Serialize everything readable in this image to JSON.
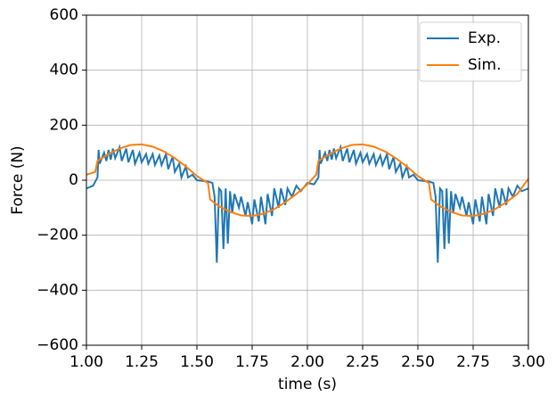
{
  "chart_data": {
    "type": "line",
    "xlabel": "time (s)",
    "ylabel": "Force (N)",
    "xlim": [
      1.0,
      3.0
    ],
    "ylim": [
      -600,
      600
    ],
    "xticks": [
      {
        "value": 1.0,
        "label": "1.00"
      },
      {
        "value": 1.25,
        "label": "1.25"
      },
      {
        "value": 1.5,
        "label": "1.50"
      },
      {
        "value": 1.75,
        "label": "1.75"
      },
      {
        "value": 2.0,
        "label": "2.00"
      },
      {
        "value": 2.25,
        "label": "2.25"
      },
      {
        "value": 2.5,
        "label": "2.50"
      },
      {
        "value": 2.75,
        "label": "2.75"
      },
      {
        "value": 3.0,
        "label": "3.00"
      }
    ],
    "yticks": [
      {
        "value": -600,
        "label": "−600"
      },
      {
        "value": -400,
        "label": "−400"
      },
      {
        "value": -200,
        "label": "−200"
      },
      0,
      200,
      400,
      600
    ],
    "grid": true,
    "legend": "upper right",
    "series": [
      {
        "name": "Exp.",
        "color": "#1f77b4",
        "x": [
          1.0,
          1.03,
          1.05,
          1.055,
          1.06,
          1.08,
          1.09,
          1.1,
          1.11,
          1.12,
          1.13,
          1.15,
          1.16,
          1.18,
          1.19,
          1.21,
          1.22,
          1.24,
          1.25,
          1.27,
          1.28,
          1.3,
          1.31,
          1.33,
          1.34,
          1.36,
          1.37,
          1.39,
          1.4,
          1.42,
          1.43,
          1.45,
          1.46,
          1.48,
          1.5,
          1.55,
          1.57,
          1.58,
          1.59,
          1.6,
          1.61,
          1.62,
          1.63,
          1.64,
          1.65,
          1.66,
          1.67,
          1.69,
          1.7,
          1.72,
          1.73,
          1.75,
          1.76,
          1.78,
          1.79,
          1.81,
          1.82,
          1.84,
          1.85,
          1.87,
          1.88,
          1.9,
          1.91,
          1.93,
          1.95,
          1.97,
          2.0,
          2.03,
          2.05,
          2.055,
          2.06,
          2.08,
          2.09,
          2.1,
          2.11,
          2.12,
          2.13,
          2.15,
          2.16,
          2.18,
          2.19,
          2.21,
          2.22,
          2.24,
          2.25,
          2.27,
          2.28,
          2.3,
          2.31,
          2.33,
          2.34,
          2.36,
          2.37,
          2.39,
          2.4,
          2.42,
          2.43,
          2.45,
          2.46,
          2.48,
          2.5,
          2.55,
          2.57,
          2.58,
          2.59,
          2.6,
          2.61,
          2.62,
          2.63,
          2.64,
          2.65,
          2.66,
          2.67,
          2.69,
          2.7,
          2.72,
          2.73,
          2.75,
          2.76,
          2.78,
          2.79,
          2.81,
          2.82,
          2.84,
          2.85,
          2.87,
          2.88,
          2.9,
          2.91,
          2.93,
          2.95,
          2.97,
          3.0
        ],
        "values": [
          -30,
          -20,
          10,
          110,
          60,
          100,
          70,
          110,
          75,
          115,
          80,
          120,
          70,
          115,
          65,
          110,
          60,
          100,
          65,
          95,
          60,
          95,
          55,
          90,
          55,
          95,
          40,
          85,
          30,
          60,
          10,
          50,
          10,
          20,
          0,
          -5,
          -10,
          -60,
          -300,
          -30,
          -40,
          -250,
          -30,
          -230,
          -40,
          -120,
          -50,
          -100,
          -60,
          -130,
          -80,
          -160,
          -70,
          -150,
          -60,
          -160,
          -50,
          -130,
          -30,
          -100,
          -30,
          -90,
          -30,
          -60,
          -20,
          -40,
          -10,
          -15,
          10,
          110,
          60,
          100,
          70,
          110,
          75,
          115,
          80,
          120,
          70,
          115,
          65,
          110,
          60,
          100,
          65,
          95,
          60,
          95,
          55,
          90,
          55,
          95,
          40,
          85,
          30,
          60,
          10,
          50,
          10,
          20,
          0,
          -5,
          -10,
          -60,
          -300,
          -30,
          -40,
          -250,
          -30,
          -230,
          -40,
          -120,
          -50,
          -100,
          -60,
          -130,
          -80,
          -160,
          -70,
          -150,
          -60,
          -160,
          -50,
          -130,
          -30,
          -100,
          -30,
          -90,
          -30,
          -60,
          -20,
          -40,
          -30
        ]
      },
      {
        "name": "Sim.",
        "color": "#ff7f0e",
        "x": [
          1.0,
          1.04,
          1.05,
          1.1,
          1.15,
          1.2,
          1.25,
          1.3,
          1.35,
          1.4,
          1.45,
          1.5,
          1.53,
          1.55,
          1.56,
          1.6,
          1.65,
          1.7,
          1.75,
          1.8,
          1.85,
          1.9,
          1.95,
          2.0,
          2.04,
          2.05,
          2.1,
          2.15,
          2.2,
          2.25,
          2.3,
          2.35,
          2.4,
          2.45,
          2.5,
          2.53,
          2.55,
          2.56,
          2.6,
          2.65,
          2.7,
          2.75,
          2.8,
          2.85,
          2.9,
          2.95,
          3.0
        ],
        "values": [
          20,
          30,
          70,
          95,
          115,
          128,
          130,
          122,
          105,
          80,
          50,
          15,
          0,
          -10,
          -70,
          -95,
          -115,
          -128,
          -130,
          -122,
          -105,
          -80,
          -50,
          -15,
          20,
          70,
          95,
          115,
          128,
          130,
          122,
          105,
          80,
          50,
          15,
          0,
          -10,
          -70,
          -95,
          -115,
          -128,
          -130,
          -122,
          -105,
          -80,
          -50,
          5
        ]
      }
    ]
  }
}
